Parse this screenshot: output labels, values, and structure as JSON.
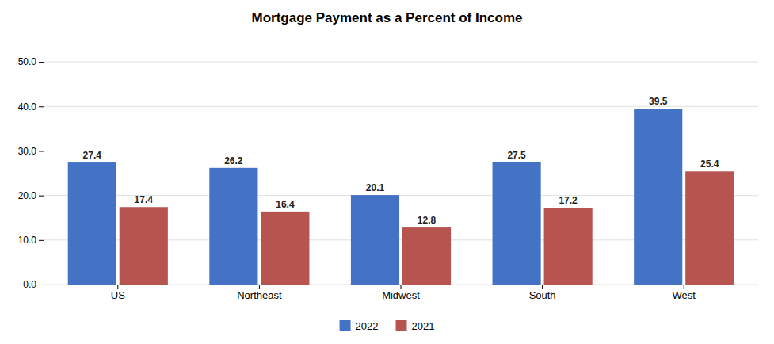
{
  "chart_data": {
    "type": "bar",
    "title": "Mortgage Payment as a Percent of Income",
    "categories": [
      "US",
      "Northeast",
      "Midwest",
      "South",
      "West"
    ],
    "series": [
      {
        "name": "2022",
        "color": "#4472C4",
        "values": [
          27.4,
          26.2,
          20.1,
          27.5,
          39.5
        ]
      },
      {
        "name": "2021",
        "color": "#B85450",
        "values": [
          17.4,
          16.4,
          12.8,
          17.2,
          25.4
        ]
      }
    ],
    "ylim": [
      0,
      55
    ],
    "yticks": [
      {
        "value": 0,
        "label": "0.0"
      },
      {
        "value": 10,
        "label": "10.0"
      },
      {
        "value": 20,
        "label": "20.0"
      },
      {
        "value": 30,
        "label": "30.0"
      },
      {
        "value": 40,
        "label": "40.0"
      },
      {
        "value": 50,
        "label": "50.0"
      }
    ],
    "grid": true,
    "legend": "bottom",
    "data_labels": true
  }
}
